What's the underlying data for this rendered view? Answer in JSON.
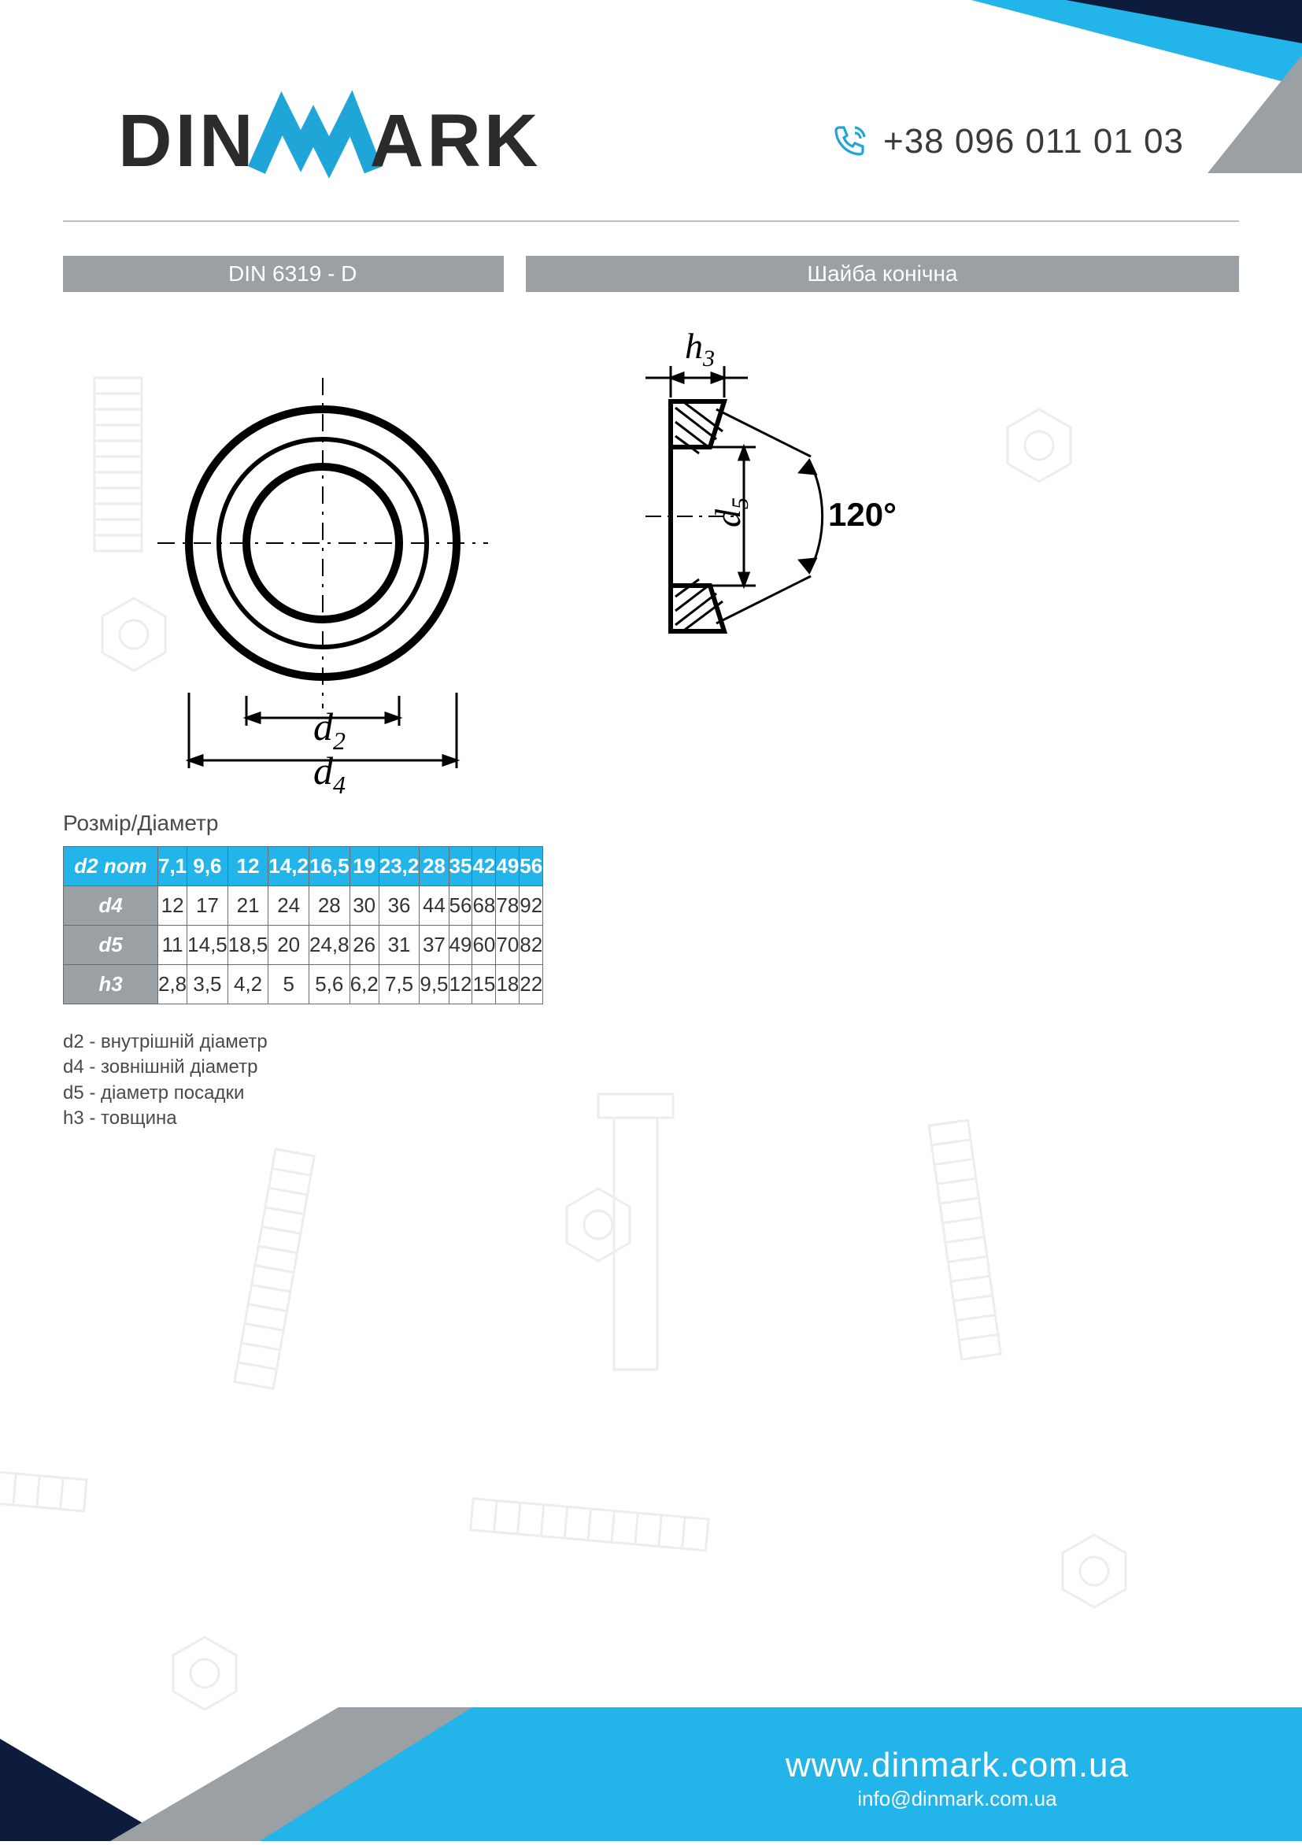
{
  "brand": {
    "pre": "DIN",
    "post": "ARK"
  },
  "colors": {
    "brand_blue": "#1fa5d8",
    "brand_blue_light": "#23b4e9",
    "dark_navy": "#0d1b3d",
    "grey_bar": "#9aa0a3",
    "text": "#3a3a3a",
    "table_border": "#6b6b6b"
  },
  "phone": "+38 096 011 01 03",
  "title_left": "DIN 6319 - D",
  "title_right": "Шайба конічна",
  "section_label": "Розмір/Діаметр",
  "diagram": {
    "labels": {
      "d2": "d",
      "d2_sub": "2",
      "d4": "d",
      "d4_sub": "4",
      "d5": "d",
      "d5_sub": "5",
      "h3": "h",
      "h3_sub": "3",
      "angle": "120°"
    }
  },
  "table": {
    "corner": "d2 nom",
    "columns": [
      "7,1",
      "9,6",
      "12",
      "14,2",
      "16,5",
      "19",
      "23,2",
      "28",
      "35",
      "42",
      "49",
      "56"
    ],
    "rows": [
      {
        "label": "d4",
        "cells": [
          "12",
          "17",
          "21",
          "24",
          "28",
          "30",
          "36",
          "44",
          "56",
          "68",
          "78",
          "92"
        ]
      },
      {
        "label": "d5",
        "cells": [
          "11",
          "14,5",
          "18,5",
          "20",
          "24,8",
          "26",
          "31",
          "37",
          "49",
          "60",
          "70",
          "82"
        ]
      },
      {
        "label": "h3",
        "cells": [
          "2,8",
          "3,5",
          "4,2",
          "5",
          "5,6",
          "6,2",
          "7,5",
          "9,5",
          "12",
          "15",
          "18",
          "22"
        ]
      }
    ]
  },
  "legend": [
    "d2 - внутрішній діаметр",
    "d4 - зовнішній діаметр",
    "d5 - діаметр посадки",
    "h3 - товщина"
  ],
  "footer": {
    "site": "www.dinmark.com.ua",
    "mail": "info@dinmark.com.ua"
  }
}
